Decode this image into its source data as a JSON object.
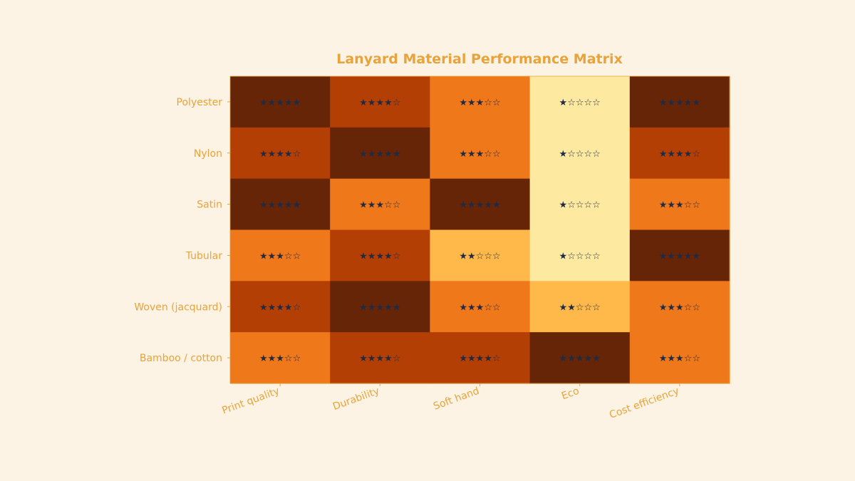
{
  "colors": {
    "background": "#fdf3e4",
    "label": "#e8a33a",
    "star": "#1f2a44",
    "scale": {
      "1": "#fde9a0",
      "2": "#ffb84a",
      "3": "#ef781b",
      "4": "#b43f04",
      "5": "#662506"
    }
  },
  "chart_data": {
    "type": "heatmap",
    "title": "Lanyard Material Performance Matrix",
    "xlabel": "",
    "ylabel": "",
    "x_categories": [
      "Print quality",
      "Durability",
      "Soft hand",
      "Eco",
      "Cost efficiency"
    ],
    "y_categories": [
      "Polyester",
      "Nylon",
      "Satin",
      "Tubular",
      "Woven (jacquard)",
      "Bamboo / cotton"
    ],
    "value_range": [
      1,
      5
    ],
    "values": [
      [
        5,
        4,
        3,
        1,
        5
      ],
      [
        4,
        5,
        3,
        1,
        4
      ],
      [
        5,
        3,
        5,
        1,
        3
      ],
      [
        3,
        4,
        2,
        1,
        5
      ],
      [
        4,
        5,
        3,
        2,
        3
      ],
      [
        3,
        4,
        4,
        5,
        3
      ]
    ],
    "cell_labels": [
      [
        "★★★★★",
        "★★★★☆",
        "★★★☆☆",
        "★☆☆☆☆",
        "★★★★★"
      ],
      [
        "★★★★☆",
        "★★★★★",
        "★★★☆☆",
        "★☆☆☆☆",
        "★★★★☆"
      ],
      [
        "★★★★★",
        "★★★☆☆",
        "★★★★★",
        "★☆☆☆☆",
        "★★★☆☆"
      ],
      [
        "★★★☆☆",
        "★★★★☆",
        "★★☆☆☆",
        "★☆☆☆☆",
        "★★★★★"
      ],
      [
        "★★★★☆",
        "★★★★★",
        "★★★☆☆",
        "★★☆☆☆",
        "★★★☆☆"
      ],
      [
        "★★★☆☆",
        "★★★★☆",
        "★★★★☆",
        "★★★★★",
        "★★★☆☆"
      ]
    ],
    "grid": false,
    "legend": "none"
  }
}
